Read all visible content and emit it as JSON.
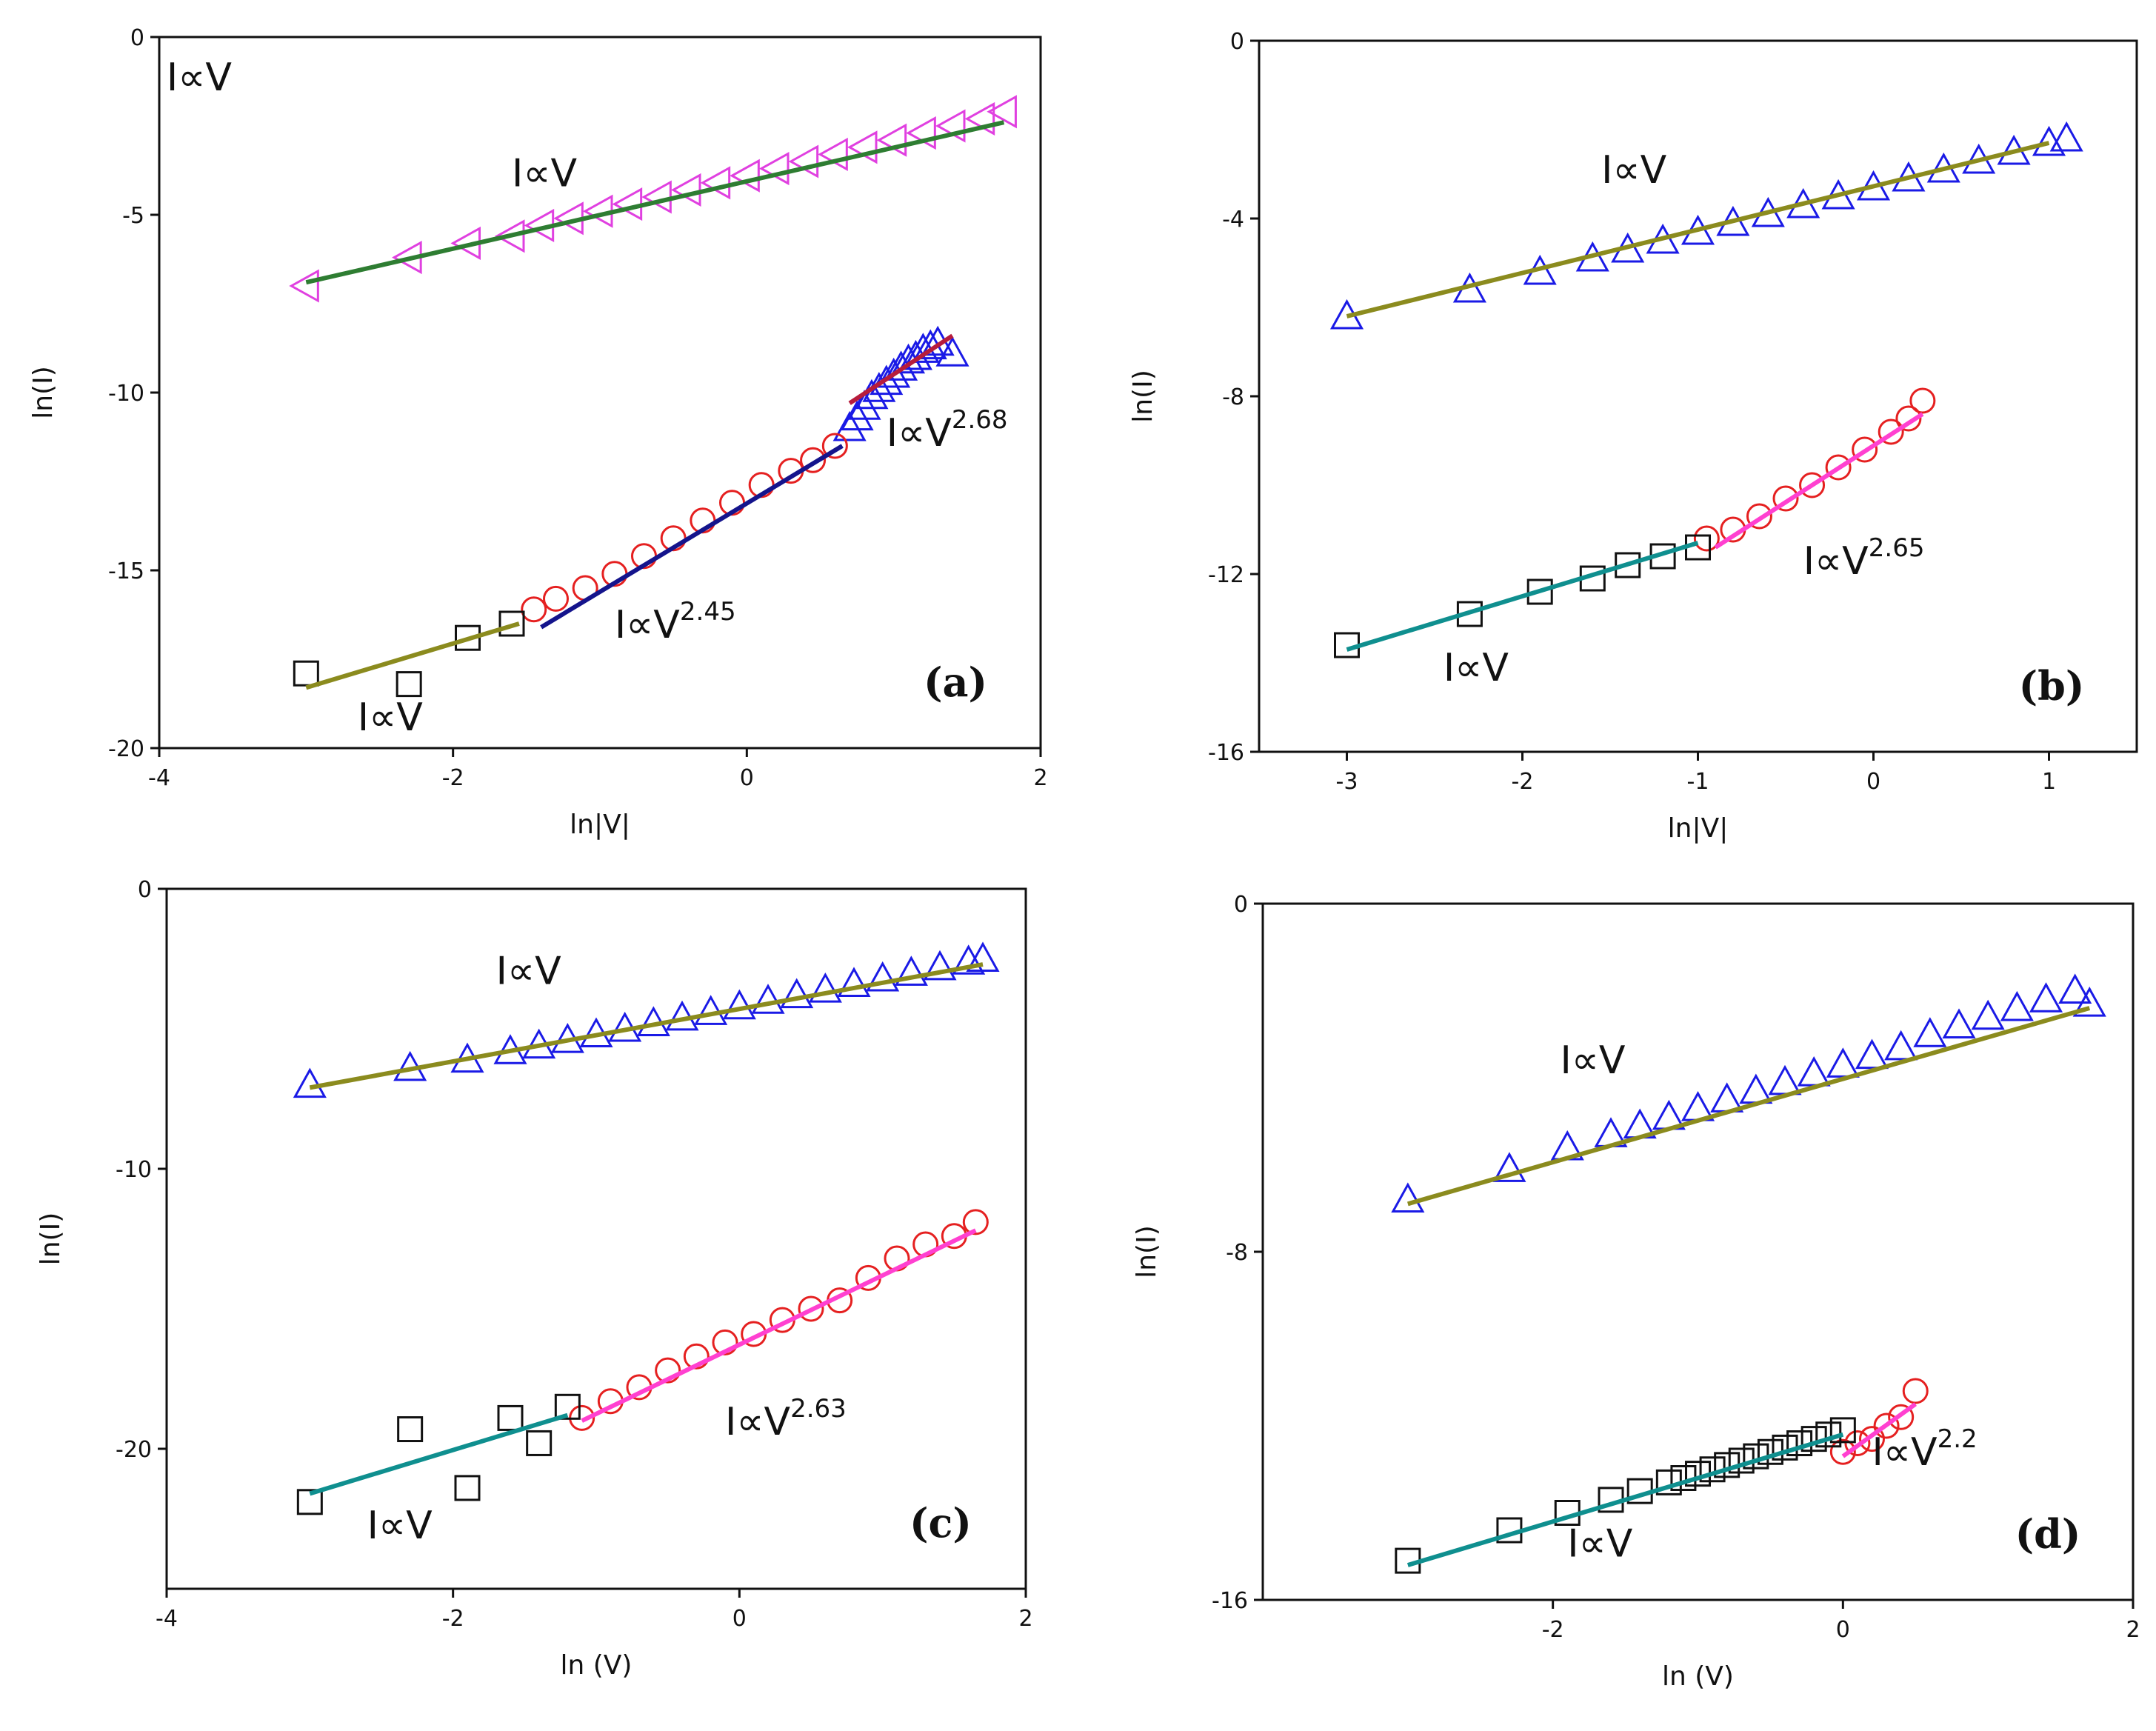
{
  "chart_data": [
    {
      "type": "scatter",
      "panel_label": "(a)",
      "xlabel": "ln|V|",
      "ylabel": "ln(I)",
      "xlim": [
        -4,
        2
      ],
      "ylim": [
        -20,
        0
      ],
      "xticks": [
        "-4",
        "-2",
        "0",
        "2"
      ],
      "yticks": [
        "0",
        "-5",
        "-10",
        "-15",
        "-20"
      ],
      "grid": false,
      "series": [
        {
          "marker": "left-triangle",
          "color": "#e040e0",
          "x": [
            -3.0,
            -2.3,
            -1.9,
            -1.6,
            -1.4,
            -1.2,
            -1.0,
            -0.8,
            -0.6,
            -0.4,
            -0.2,
            0.0,
            0.2,
            0.4,
            0.6,
            0.8,
            1.0,
            1.2,
            1.4,
            1.6,
            1.75
          ],
          "y": [
            -7.0,
            -6.2,
            -5.8,
            -5.6,
            -5.3,
            -5.1,
            -4.9,
            -4.7,
            -4.5,
            -4.3,
            -4.1,
            -3.9,
            -3.7,
            -3.5,
            -3.3,
            -3.1,
            -2.9,
            -2.7,
            -2.5,
            -2.3,
            -2.1
          ]
        },
        {
          "marker": "triangle",
          "color": "#1a1ae6",
          "x": [
            0.7,
            0.75,
            0.8,
            0.85,
            0.9,
            0.95,
            1.0,
            1.05,
            1.1,
            1.15,
            1.2,
            1.25,
            1.3,
            1.4
          ],
          "y": [
            -11.0,
            -10.7,
            -10.4,
            -10.1,
            -9.9,
            -9.7,
            -9.5,
            -9.3,
            -9.1,
            -9.0,
            -8.8,
            -8.7,
            -8.6,
            -8.9
          ]
        },
        {
          "marker": "circle",
          "color": "#e52020",
          "x": [
            -1.45,
            -1.3,
            -1.1,
            -0.9,
            -0.7,
            -0.5,
            -0.3,
            -0.1,
            0.1,
            0.3,
            0.45,
            0.6
          ],
          "y": [
            -16.1,
            -15.8,
            -15.5,
            -15.1,
            -14.6,
            -14.1,
            -13.6,
            -13.1,
            -12.6,
            -12.2,
            -11.9,
            -11.5
          ]
        },
        {
          "marker": "square",
          "color": "#111111",
          "x": [
            -3.0,
            -2.3,
            -1.9,
            -1.6
          ],
          "y": [
            -17.9,
            -18.2,
            -16.9,
            -16.5
          ]
        }
      ],
      "fits": [
        {
          "color": "#2e7d32",
          "x": [
            -3.0,
            1.75
          ],
          "y": [
            -6.9,
            -2.4
          ]
        },
        {
          "color": "#b71c3c",
          "x": [
            0.7,
            1.4
          ],
          "y": [
            -10.3,
            -8.4
          ]
        },
        {
          "color": "#14148c",
          "x": [
            -1.4,
            0.65
          ],
          "y": [
            -16.6,
            -11.5
          ]
        },
        {
          "color": "#8b8b1e",
          "x": [
            -3.0,
            -1.55
          ],
          "y": [
            -18.3,
            -16.5
          ]
        }
      ],
      "annotations": [
        {
          "text": "I∝V",
          "sup": "",
          "x": -3.95,
          "y": -1.5
        },
        {
          "text": "I∝V",
          "sup": "",
          "x": -1.6,
          "y": -4.2
        },
        {
          "text": "I∝V",
          "sup": "2.68",
          "x": 0.95,
          "y": -11.5
        },
        {
          "text": "I∝V",
          "sup": "2.45",
          "x": -0.9,
          "y": -16.9
        },
        {
          "text": "I∝V",
          "sup": "",
          "x": -2.65,
          "y": -19.5
        }
      ]
    },
    {
      "type": "scatter",
      "panel_label": "(b)",
      "xlabel": "ln|V|",
      "ylabel": "ln(I)",
      "xlim": [
        -3.5,
        1.5
      ],
      "ylim": [
        -16,
        0
      ],
      "xticks": [
        "-3",
        "-2",
        "-1",
        "0",
        "1"
      ],
      "yticks": [
        "0",
        "-4",
        "-8",
        "-12",
        "-16"
      ],
      "grid": false,
      "series": [
        {
          "marker": "triangle",
          "color": "#1a1ae6",
          "x": [
            -3.0,
            -2.3,
            -1.9,
            -1.6,
            -1.4,
            -1.2,
            -1.0,
            -0.8,
            -0.6,
            -0.4,
            -0.2,
            0.0,
            0.2,
            0.4,
            0.6,
            0.8,
            1.0,
            1.1
          ],
          "y": [
            -6.2,
            -5.6,
            -5.2,
            -4.9,
            -4.7,
            -4.5,
            -4.3,
            -4.1,
            -3.9,
            -3.7,
            -3.5,
            -3.3,
            -3.1,
            -2.9,
            -2.7,
            -2.5,
            -2.3,
            -2.2
          ]
        },
        {
          "marker": "circle",
          "color": "#e52020",
          "x": [
            -0.95,
            -0.8,
            -0.65,
            -0.5,
            -0.35,
            -0.2,
            -0.05,
            0.1,
            0.2,
            0.28
          ],
          "y": [
            -11.2,
            -11.0,
            -10.7,
            -10.3,
            -10.0,
            -9.6,
            -9.2,
            -8.8,
            -8.5,
            -8.1
          ]
        },
        {
          "marker": "square",
          "color": "#111111",
          "x": [
            -3.0,
            -2.3,
            -1.9,
            -1.6,
            -1.4,
            -1.2,
            -1.0
          ],
          "y": [
            -13.6,
            -12.9,
            -12.4,
            -12.1,
            -11.8,
            -11.6,
            -11.4
          ]
        }
      ],
      "fits": [
        {
          "color": "#8b8b1e",
          "x": [
            -3.0,
            1.0
          ],
          "y": [
            -6.2,
            -2.3
          ]
        },
        {
          "color": "#ff40d0",
          "x": [
            -0.9,
            0.28
          ],
          "y": [
            -11.4,
            -8.4
          ]
        },
        {
          "color": "#0f8f8f",
          "x": [
            -3.0,
            -1.0
          ],
          "y": [
            -13.7,
            -11.3
          ]
        }
      ],
      "annotations": [
        {
          "text": "I∝V",
          "sup": "",
          "x": -1.55,
          "y": -3.2
        },
        {
          "text": "I∝V",
          "sup": "2.65",
          "x": -0.4,
          "y": -12.0
        },
        {
          "text": "I∝V",
          "sup": "",
          "x": -2.45,
          "y": -14.4
        }
      ]
    },
    {
      "type": "scatter",
      "panel_label": "(c)",
      "xlabel": "ln (V)",
      "ylabel": "ln(I)",
      "xlim": [
        -4,
        2
      ],
      "ylim": [
        -25,
        0
      ],
      "xticks": [
        "-4",
        "-2",
        "0",
        "2"
      ],
      "yticks": [
        "0",
        "-10",
        "-20"
      ],
      "grid": false,
      "series": [
        {
          "marker": "triangle",
          "color": "#1a1ae6",
          "x": [
            -3.0,
            -2.3,
            -1.9,
            -1.6,
            -1.4,
            -1.2,
            -1.0,
            -0.8,
            -0.6,
            -0.4,
            -0.2,
            0.0,
            0.2,
            0.4,
            0.6,
            0.8,
            1.0,
            1.2,
            1.4,
            1.6,
            1.7
          ],
          "y": [
            -7.0,
            -6.4,
            -6.1,
            -5.8,
            -5.6,
            -5.4,
            -5.2,
            -5.0,
            -4.8,
            -4.6,
            -4.4,
            -4.2,
            -4.0,
            -3.8,
            -3.6,
            -3.4,
            -3.2,
            -3.0,
            -2.8,
            -2.6,
            -2.5
          ]
        },
        {
          "marker": "circle",
          "color": "#e52020",
          "x": [
            -1.1,
            -0.9,
            -0.7,
            -0.5,
            -0.3,
            -0.1,
            0.1,
            0.3,
            0.5,
            0.7,
            0.9,
            1.1,
            1.3,
            1.5,
            1.65
          ],
          "y": [
            -18.9,
            -18.3,
            -17.8,
            -17.2,
            -16.7,
            -16.2,
            -15.9,
            -15.4,
            -15.0,
            -14.7,
            -13.9,
            -13.2,
            -12.7,
            -12.4,
            -11.9
          ]
        },
        {
          "marker": "square",
          "color": "#111111",
          "x": [
            -3.0,
            -2.3,
            -1.9,
            -1.6,
            -1.4,
            -1.2
          ],
          "y": [
            -21.9,
            -19.3,
            -21.4,
            -18.9,
            -19.8,
            -18.5
          ]
        }
      ],
      "fits": [
        {
          "color": "#8b8b1e",
          "x": [
            -3.0,
            1.7
          ],
          "y": [
            -7.1,
            -2.7
          ]
        },
        {
          "color": "#ff40d0",
          "x": [
            -1.1,
            1.65
          ],
          "y": [
            -19.0,
            -12.2
          ]
        },
        {
          "color": "#0f8f8f",
          "x": [
            -3.0,
            -1.2
          ],
          "y": [
            -21.6,
            -18.8
          ]
        }
      ],
      "annotations": [
        {
          "text": "I∝V",
          "sup": "",
          "x": -1.7,
          "y": -3.4
        },
        {
          "text": "I∝V",
          "sup": "2.63",
          "x": -0.1,
          "y": -19.5
        },
        {
          "text": "I∝V",
          "sup": "",
          "x": -2.6,
          "y": -23.2
        }
      ]
    },
    {
      "type": "scatter",
      "panel_label": "(d)",
      "xlabel": "ln (V)",
      "ylabel": "ln(I)",
      "xlim": [
        -4,
        2
      ],
      "ylim": [
        -16,
        0
      ],
      "xticks": [
        "-2",
        "0",
        "2"
      ],
      "yticks": [
        "0",
        "-8",
        "-16"
      ],
      "grid": false,
      "series": [
        {
          "marker": "triangle",
          "color": "#1a1ae6",
          "x": [
            -3.0,
            -2.3,
            -1.9,
            -1.6,
            -1.4,
            -1.2,
            -1.0,
            -0.8,
            -0.6,
            -0.4,
            -0.2,
            0.0,
            0.2,
            0.4,
            0.6,
            0.8,
            1.0,
            1.2,
            1.4,
            1.6,
            1.7
          ],
          "y": [
            -6.8,
            -6.1,
            -5.6,
            -5.3,
            -5.1,
            -4.9,
            -4.7,
            -4.5,
            -4.3,
            -4.1,
            -3.9,
            -3.7,
            -3.5,
            -3.3,
            -3.0,
            -2.8,
            -2.6,
            -2.4,
            -2.2,
            -2.0,
            -2.3
          ]
        },
        {
          "marker": "circle",
          "color": "#e52020",
          "x": [
            0.0,
            0.1,
            0.2,
            0.3,
            0.4,
            0.5
          ],
          "y": [
            -12.6,
            -12.4,
            -12.3,
            -12.0,
            -11.8,
            -11.2
          ]
        },
        {
          "marker": "square",
          "color": "#111111",
          "x": [
            -3.0,
            -2.3,
            -1.9,
            -1.6,
            -1.4,
            -1.2,
            -1.1,
            -1.0,
            -0.9,
            -0.8,
            -0.7,
            -0.6,
            -0.5,
            -0.4,
            -0.3,
            -0.2,
            -0.1,
            0.0
          ],
          "y": [
            -15.1,
            -14.4,
            -14.0,
            -13.7,
            -13.5,
            -13.3,
            -13.2,
            -13.1,
            -13.0,
            -12.9,
            -12.8,
            -12.7,
            -12.6,
            -12.5,
            -12.4,
            -12.3,
            -12.2,
            -12.1
          ]
        }
      ],
      "fits": [
        {
          "color": "#8b8b1e",
          "x": [
            -3.0,
            1.7
          ],
          "y": [
            -6.9,
            -2.4
          ]
        },
        {
          "color": "#ff40d0",
          "x": [
            0.0,
            0.5
          ],
          "y": [
            -12.7,
            -11.5
          ]
        },
        {
          "color": "#0f8f8f",
          "x": [
            -3.0,
            0.0
          ],
          "y": [
            -15.2,
            -12.2
          ]
        }
      ],
      "annotations": [
        {
          "text": "I∝V",
          "sup": "",
          "x": -1.95,
          "y": -3.9
        },
        {
          "text": "I∝V",
          "sup": "2.2",
          "x": 0.2,
          "y": -12.9
        },
        {
          "text": "I∝V",
          "sup": "",
          "x": -1.9,
          "y": -15.0
        }
      ]
    }
  ]
}
